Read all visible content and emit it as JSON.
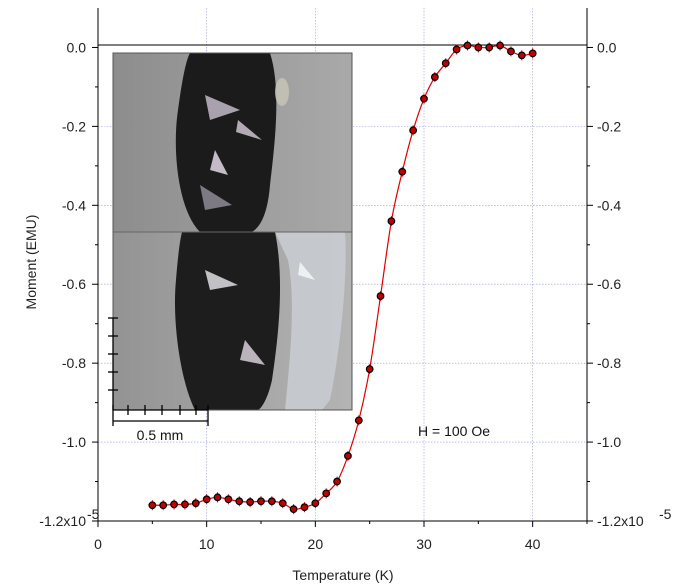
{
  "chart_data": {
    "type": "scatter",
    "xlabel": "Temperature (K)",
    "ylabel": "Moment (EMU)",
    "xlim": [
      0,
      45
    ],
    "ylim": [
      -1.2e-05,
      1e-06
    ],
    "x_ticks": [
      "0",
      "10",
      "20",
      "30",
      "40"
    ],
    "y_ticks": [
      "0.0",
      "-0.2",
      "-0.4",
      "-0.6",
      "-0.8",
      "-1.0",
      "-1.2x10"
    ],
    "y_exponent_label": "-5",
    "grid": true,
    "annotation": "H = 100 Oe",
    "inset_scale_label": "0.5 mm",
    "marker_color": "#c00000",
    "line_color": "#e00000",
    "grid_color": "#9999dd",
    "series": [
      {
        "x": [
          5,
          6,
          7,
          8,
          9,
          10,
          11,
          12,
          13,
          14,
          15,
          16,
          17,
          18,
          19,
          20,
          21,
          22,
          23,
          24,
          25,
          26,
          27,
          28,
          29,
          30,
          31,
          32,
          33,
          34,
          35,
          36,
          37,
          38,
          39,
          40
        ],
        "y": [
          -1.16e-05,
          -1.16e-05,
          -1.158e-05,
          -1.158e-05,
          -1.155e-05,
          -1.145e-05,
          -1.14e-05,
          -1.145e-05,
          -1.15e-05,
          -1.152e-05,
          -1.15e-05,
          -1.15e-05,
          -1.155e-05,
          -1.17e-05,
          -1.165e-05,
          -1.155e-05,
          -1.13e-05,
          -1.1e-05,
          -1.035e-05,
          -9.45e-06,
          -8.15e-06,
          -6.3e-06,
          -4.4e-06,
          -3.15e-06,
          -2.1e-06,
          -1.3e-06,
          -7.5e-07,
          -4e-07,
          -5e-08,
          5e-08,
          0.0,
          0.0,
          5e-08,
          -1e-07,
          -2e-07,
          -1.5e-07
        ]
      }
    ]
  }
}
